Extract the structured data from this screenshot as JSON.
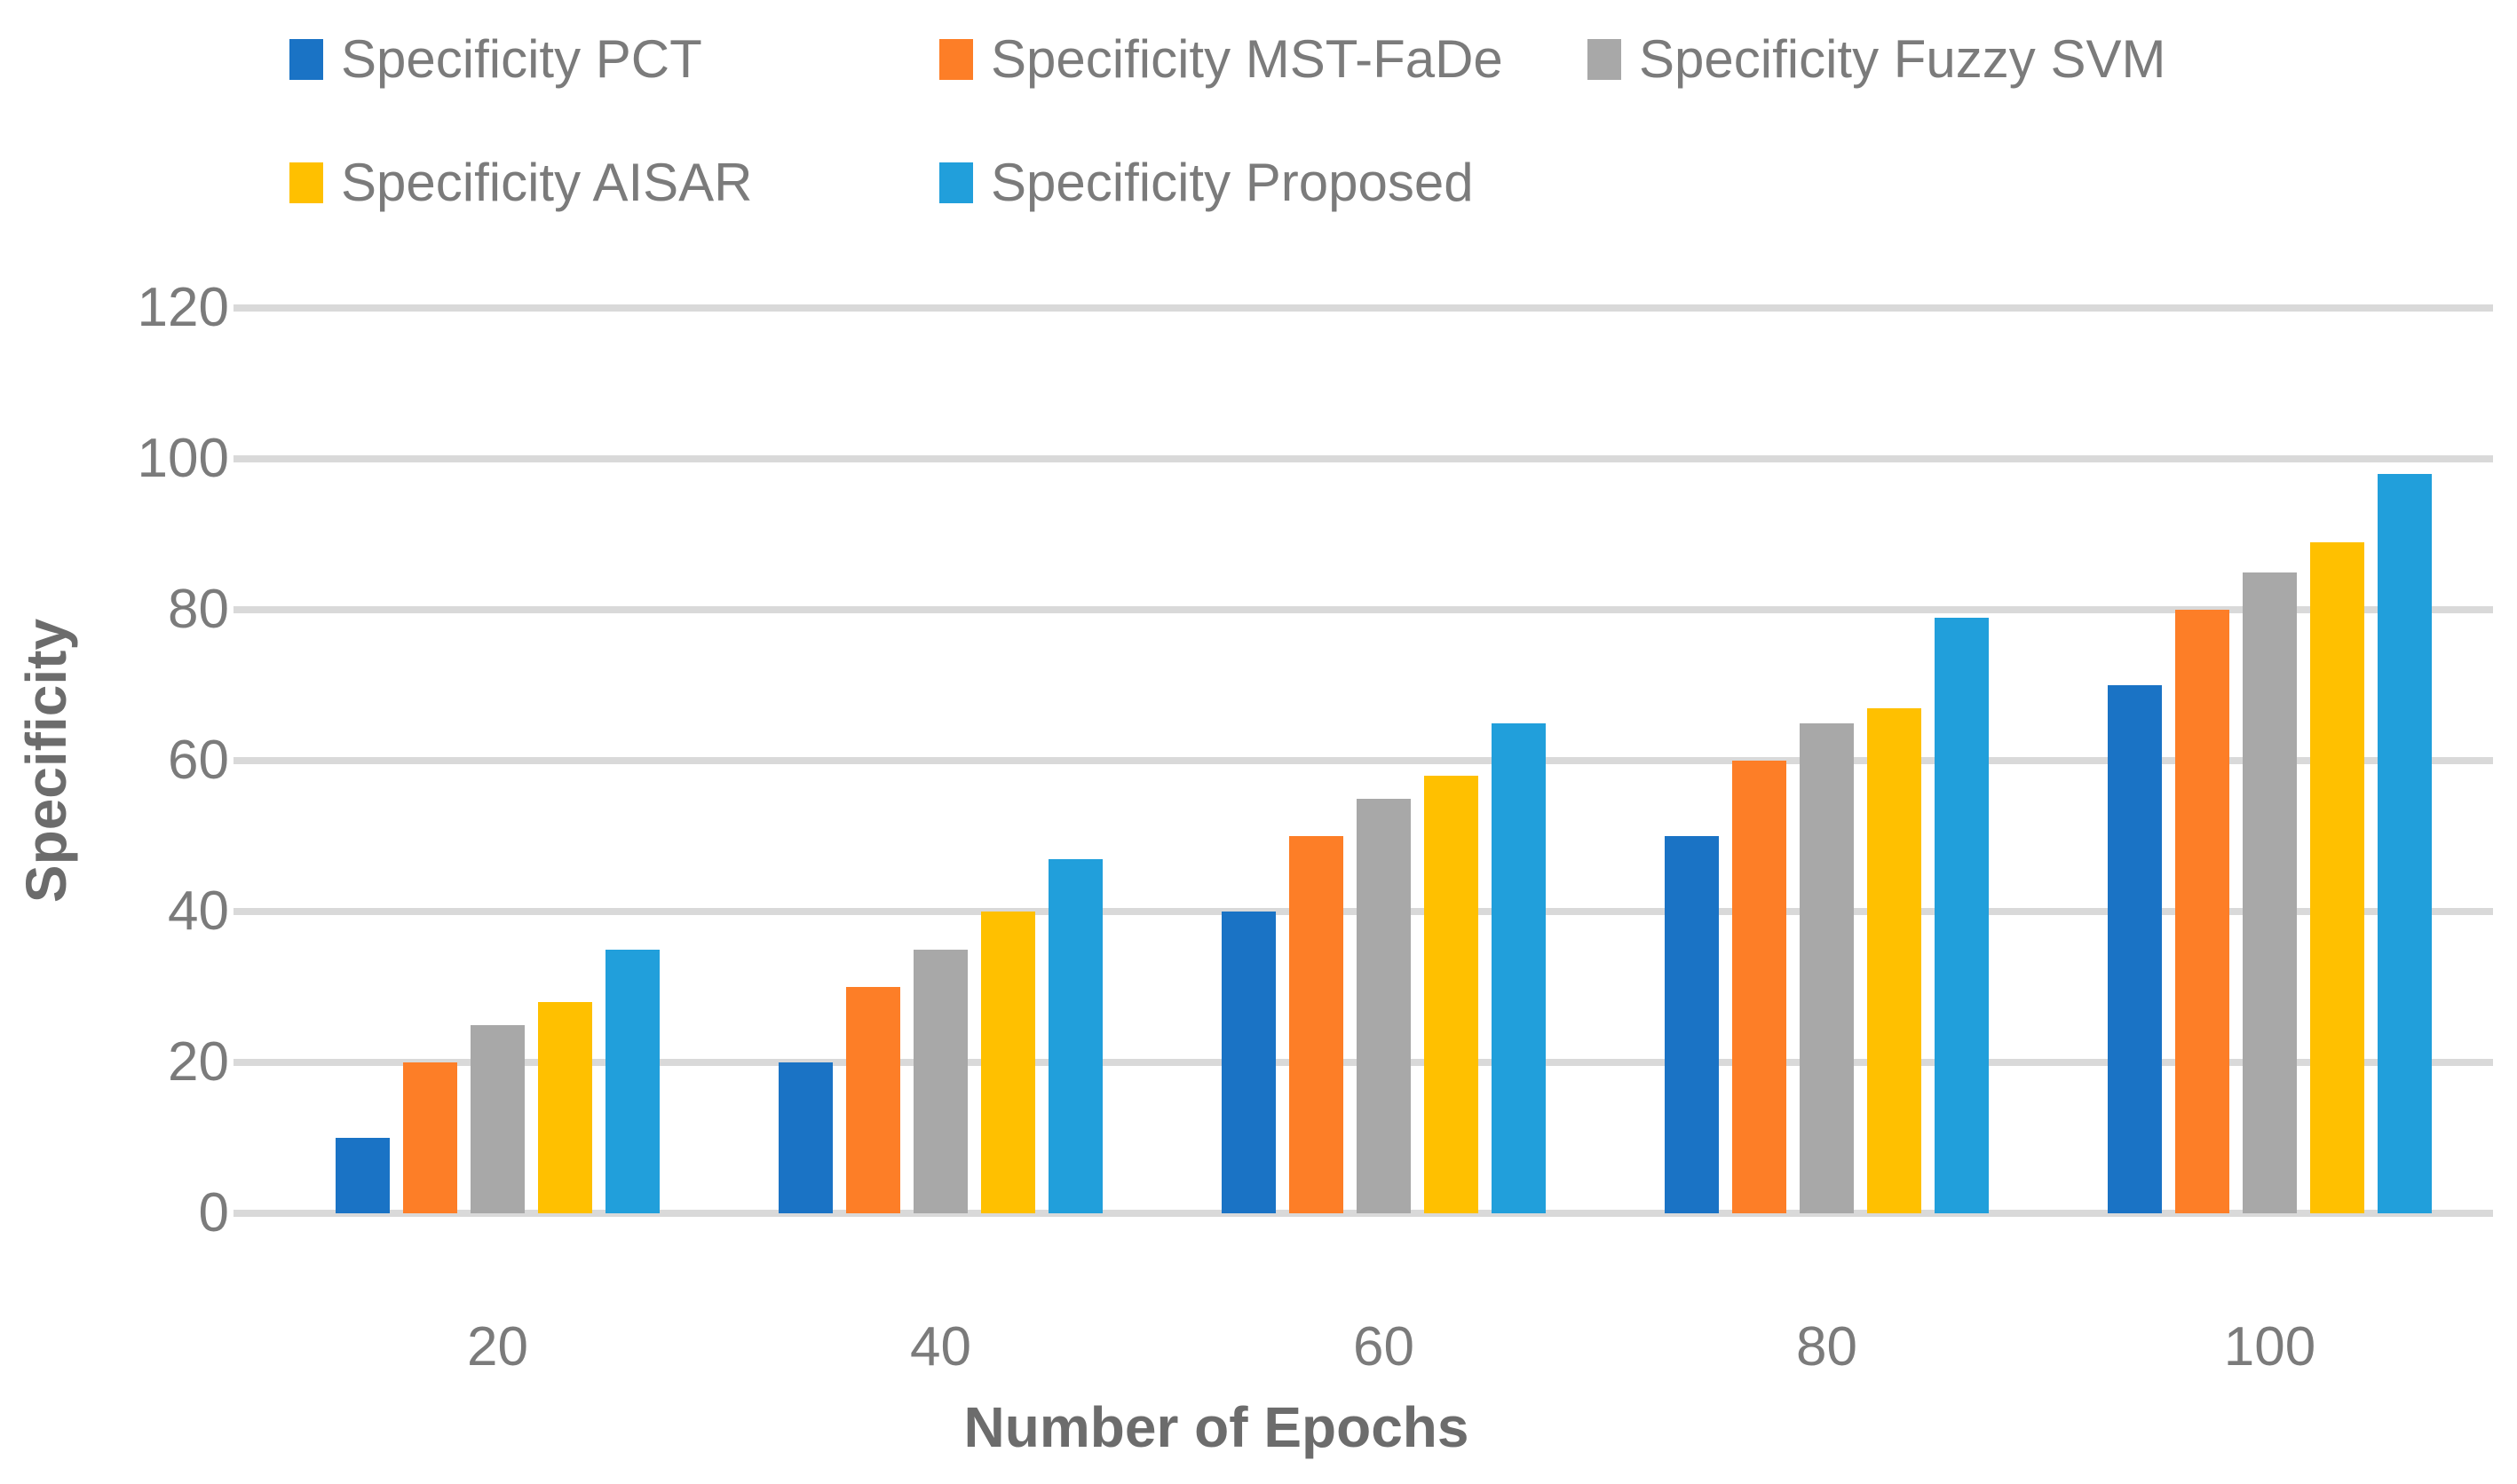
{
  "chart_data": {
    "type": "bar",
    "title": "",
    "xlabel": "Number of Epochs",
    "ylabel": "Specificity",
    "categories": [
      20,
      40,
      60,
      80,
      100
    ],
    "series": [
      {
        "name": "Specificity PCT",
        "color": "#1A73C5",
        "values": [
          10,
          20,
          40,
          50,
          70
        ]
      },
      {
        "name": "Specificity MST-FaDe",
        "color": "#FD7E27",
        "values": [
          20,
          30,
          50,
          60,
          80
        ]
      },
      {
        "name": "Specificity Fuzzy SVM",
        "color": "#A8A8A8",
        "values": [
          25,
          35,
          55,
          65,
          85
        ]
      },
      {
        "name": "Specificity AISAR",
        "color": "#FFC000",
        "values": [
          28,
          40,
          58,
          67,
          89
        ]
      },
      {
        "name": "Specificity Proposed",
        "color": "#219FDB",
        "values": [
          35,
          47,
          65,
          79,
          98
        ]
      }
    ],
    "ylim": [
      0,
      120
    ],
    "yticks": [
      0,
      20,
      40,
      60,
      80,
      100,
      120
    ],
    "grid": "horizontal-only",
    "legend_position": "top",
    "legend_rows": [
      [
        "Specificity PCT",
        "Specificity MST-FaDe",
        "Specificity Fuzzy SVM"
      ],
      [
        "Specificity AISAR",
        "Specificity Proposed"
      ]
    ]
  },
  "styles": {
    "gridline_color": "#D9D9D9",
    "tick_text_color": "#7B7B7B",
    "legend_text_color": "#7B7B7B",
    "axis_title_color": "#6C6C6C",
    "background_color": "#FFFFFF"
  }
}
